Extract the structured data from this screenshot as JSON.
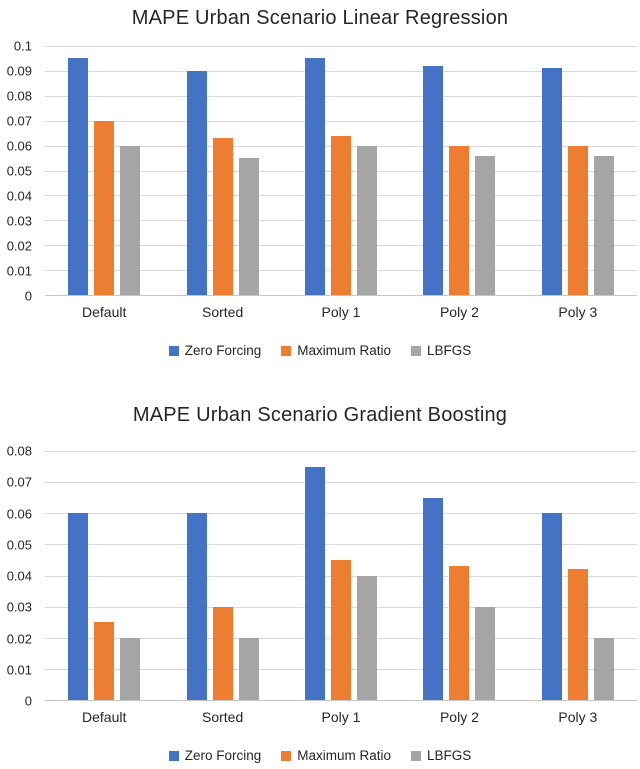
{
  "colors": {
    "zero_forcing": "#4472C4",
    "maximum_ratio": "#ED7D31",
    "lbfgs": "#A5A5A5",
    "gridline": "#D9D9D9",
    "axis_line": "#C6C6C6",
    "text": "#262626",
    "background": "#FFFFFF"
  },
  "chart_data": [
    {
      "type": "bar",
      "title": "MAPE Urban Scenario Linear Regression",
      "xlabel": "",
      "ylabel": "",
      "ylim": [
        0,
        0.1
      ],
      "ytick_step": 0.01,
      "yticks": [
        "0.1",
        "0.09",
        "0.08",
        "0.07",
        "0.06",
        "0.05",
        "0.04",
        "0.03",
        "0.02",
        "0.01",
        "0"
      ],
      "grid": true,
      "legend_position": "bottom",
      "categories": [
        "Default",
        "Sorted",
        "Poly 1",
        "Poly 2",
        "Poly 3"
      ],
      "series": [
        {
          "name": "Zero Forcing",
          "color": "#4472C4",
          "values": [
            0.095,
            0.09,
            0.095,
            0.092,
            0.091
          ]
        },
        {
          "name": "Maximum Ratio",
          "color": "#ED7D31",
          "values": [
            0.07,
            0.063,
            0.064,
            0.06,
            0.06
          ]
        },
        {
          "name": "LBFGS",
          "color": "#A5A5A5",
          "values": [
            0.06,
            0.055,
            0.06,
            0.056,
            0.056
          ]
        }
      ]
    },
    {
      "type": "bar",
      "title": "MAPE Urban Scenario Gradient Boosting",
      "xlabel": "",
      "ylabel": "",
      "ylim": [
        0,
        0.08
      ],
      "ytick_step": 0.01,
      "yticks": [
        "0.08",
        "0.07",
        "0.06",
        "0.05",
        "0.04",
        "0.03",
        "0.02",
        "0.01",
        "0"
      ],
      "grid": true,
      "legend_position": "bottom",
      "categories": [
        "Default",
        "Sorted",
        "Poly 1",
        "Poly 2",
        "Poly 3"
      ],
      "series": [
        {
          "name": "Zero Forcing",
          "color": "#4472C4",
          "values": [
            0.06,
            0.06,
            0.075,
            0.065,
            0.06
          ]
        },
        {
          "name": "Maximum Ratio",
          "color": "#ED7D31",
          "values": [
            0.025,
            0.03,
            0.045,
            0.043,
            0.042
          ]
        },
        {
          "name": "LBFGS",
          "color": "#A5A5A5",
          "values": [
            0.02,
            0.02,
            0.04,
            0.03,
            0.02
          ]
        }
      ]
    }
  ]
}
